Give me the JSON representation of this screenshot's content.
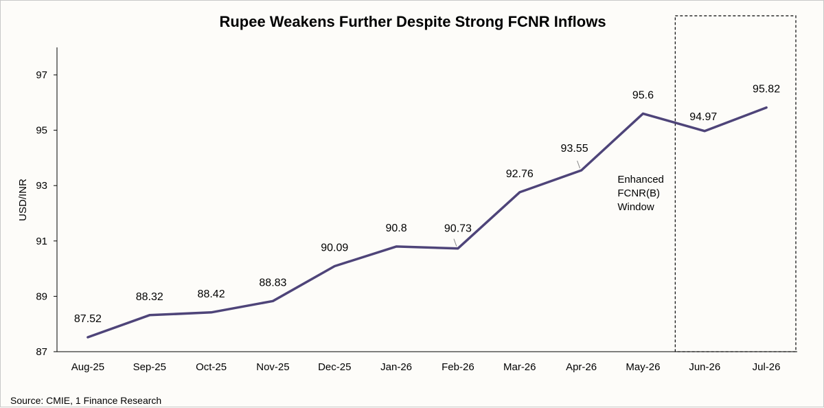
{
  "chart_data": {
    "type": "line",
    "title": "Rupee Weakens Further Despite Strong FCNR Inflows",
    "ylabel": "USD/INR",
    "xlabel": "",
    "categories": [
      "Aug-25",
      "Sep-25",
      "Oct-25",
      "Nov-25",
      "Dec-25",
      "Jan-26",
      "Feb-26",
      "Mar-26",
      "Apr-26",
      "May-26",
      "Jun-26",
      "Jul-26"
    ],
    "series": [
      {
        "values": [
          87.52,
          88.32,
          88.42,
          88.83,
          90.09,
          90.8,
          90.73,
          92.76,
          93.55,
          95.6,
          94.97,
          95.82
        ]
      }
    ],
    "data_labels": [
      "87.52",
      "88.32",
      "88.42",
      "88.83",
      "90.09",
      "90.8",
      "90.73",
      "92.76",
      "93.55",
      "95.6",
      "94.97",
      "95.82"
    ],
    "ylim": [
      87,
      98
    ],
    "yticks": [
      "87",
      "89",
      "91",
      "93",
      "95",
      "97"
    ],
    "ytick_values": [
      87,
      89,
      91,
      93,
      95,
      97
    ],
    "grid": false,
    "legend": "none",
    "line_color": "#4e4479",
    "annotation": {
      "lines": [
        "Enhanced",
        "FCNR(B)",
        "Window"
      ],
      "highlight_categories": [
        "Jun-26",
        "Jul-26"
      ]
    },
    "source": "Source: CMIE, 1 Finance Research"
  }
}
